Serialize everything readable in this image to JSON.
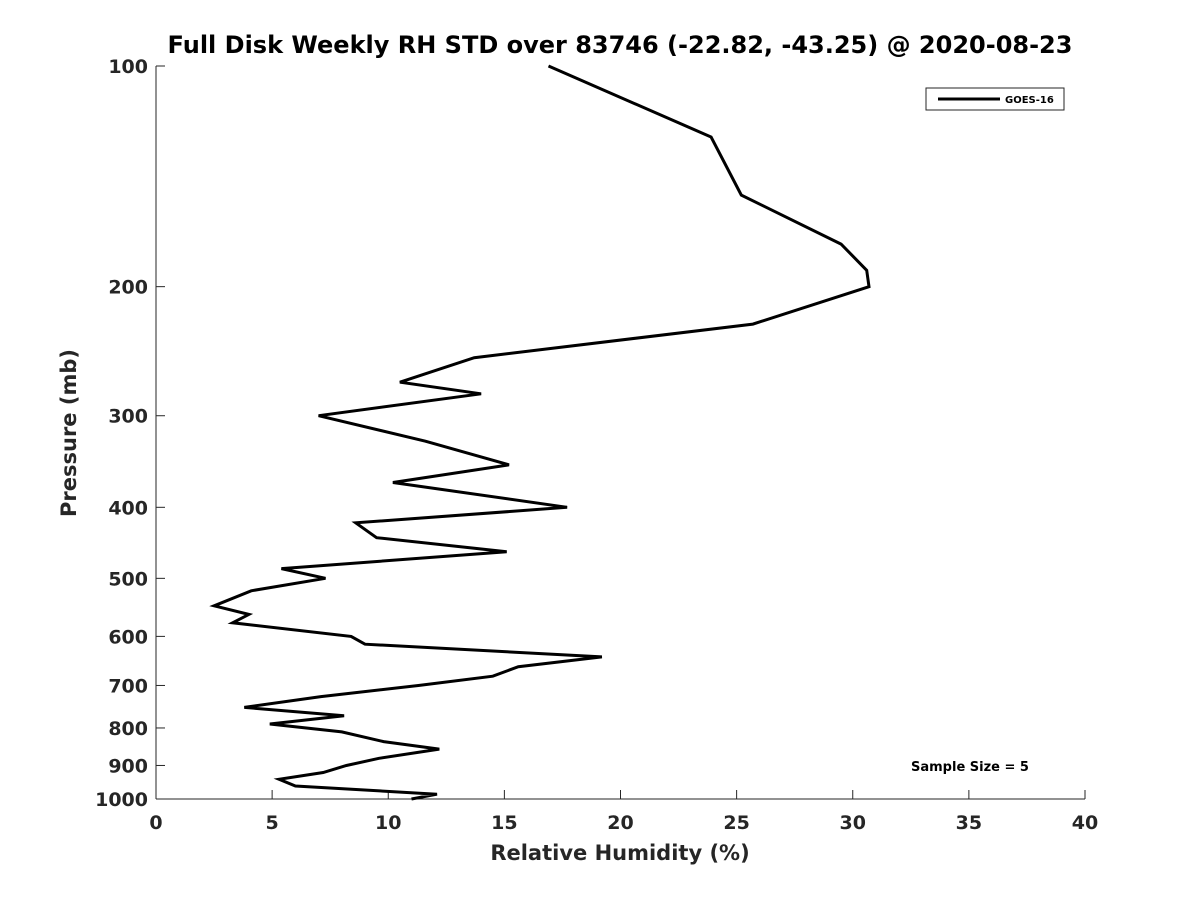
{
  "chart_data": {
    "type": "line",
    "title": "Full Disk Weekly RH STD over 83746 (-22.82, -43.25) @ 2020-08-23",
    "xlabel": "Relative Humidity (%)",
    "ylabel": "Pressure (mb)",
    "xlim": [
      0,
      40
    ],
    "ylim": [
      100,
      1000
    ],
    "y_scale": "log",
    "y_reversed": true,
    "xticks": [
      0,
      5,
      10,
      15,
      20,
      25,
      30,
      35,
      40
    ],
    "yticks": [
      100,
      200,
      300,
      400,
      500,
      600,
      700,
      800,
      900,
      1000
    ],
    "grid": false,
    "legend": {
      "placement": "top-right",
      "entries": [
        "GOES-16"
      ]
    },
    "annotations": [
      {
        "text": "Sample Size = 5",
        "placement": "bottom-right"
      }
    ],
    "series": [
      {
        "name": "GOES-16",
        "color": "#000000",
        "points": [
          [
            16.9,
            100
          ],
          [
            23.9,
            125
          ],
          [
            25.2,
            150
          ],
          [
            29.5,
            175
          ],
          [
            30.6,
            190
          ],
          [
            30.7,
            200
          ],
          [
            25.7,
            225
          ],
          [
            13.7,
            250
          ],
          [
            10.5,
            270
          ],
          [
            14.0,
            280
          ],
          [
            7.0,
            300
          ],
          [
            11.6,
            325
          ],
          [
            15.2,
            350
          ],
          [
            10.2,
            370
          ],
          [
            17.7,
            400
          ],
          [
            8.6,
            420
          ],
          [
            9.5,
            440
          ],
          [
            15.1,
            460
          ],
          [
            5.4,
            485
          ],
          [
            7.3,
            500
          ],
          [
            4.1,
            520
          ],
          [
            2.5,
            545
          ],
          [
            4.0,
            560
          ],
          [
            3.3,
            575
          ],
          [
            8.4,
            600
          ],
          [
            9.0,
            615
          ],
          [
            19.2,
            640
          ],
          [
            15.6,
            660
          ],
          [
            14.5,
            680
          ],
          [
            11.3,
            700
          ],
          [
            7.1,
            725
          ],
          [
            3.8,
            750
          ],
          [
            8.1,
            770
          ],
          [
            4.9,
            790
          ],
          [
            8.0,
            810
          ],
          [
            9.8,
            835
          ],
          [
            12.2,
            855
          ],
          [
            9.6,
            880
          ],
          [
            8.2,
            900
          ],
          [
            7.2,
            920
          ],
          [
            5.3,
            940
          ],
          [
            6.0,
            960
          ],
          [
            12.1,
            985
          ],
          [
            11.0,
            1000
          ]
        ]
      }
    ]
  }
}
